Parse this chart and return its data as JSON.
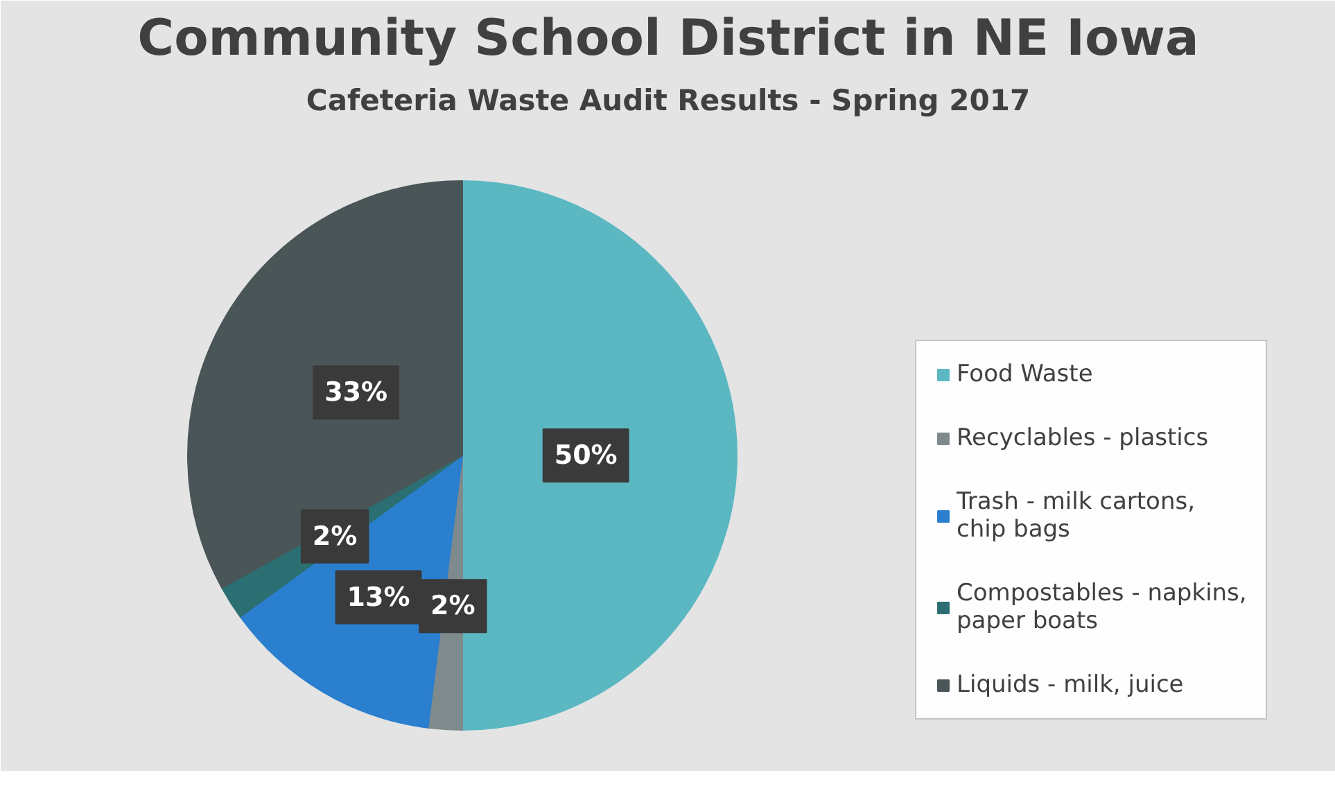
{
  "chart_data": {
    "type": "pie",
    "title": "Community School District in NE Iowa",
    "subtitle": "Cafeteria Waste Audit Results - Spring 2017",
    "categories": [
      "Food Waste",
      "Recyclables - plastics",
      "Trash - milk cartons, chip bags",
      "Compostables - napkins, paper boats",
      "Liquids - milk, juice"
    ],
    "values": [
      50,
      2,
      13,
      2,
      33
    ],
    "colors": [
      "#5bb8c2",
      "#7f8a8c",
      "#2b7fcf",
      "#2b6f72",
      "#4a5557"
    ],
    "value_labels": [
      "50%",
      "2%",
      "13%",
      "2%",
      "33%"
    ],
    "legend": "right"
  }
}
